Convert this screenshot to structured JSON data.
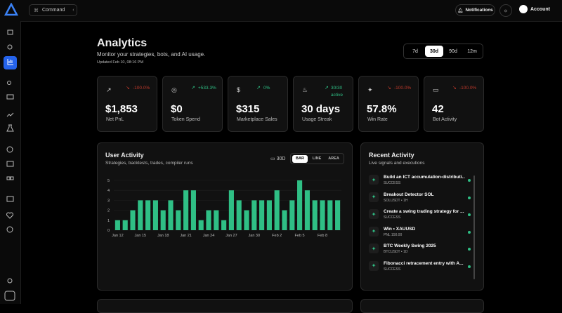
{
  "nav": {
    "command": "Command",
    "notifications": "Notifications",
    "account": "Account"
  },
  "header": {
    "title": "Analytics",
    "subtitle": "Monitor your strategies, bots, and AI usage.",
    "updated": "Updated Feb 10, 08:16 PM",
    "periods": [
      "7d",
      "30d",
      "90d",
      "12m"
    ],
    "active_period_index": 1
  },
  "stats": [
    {
      "value": "$1,853",
      "label": "Net PnL",
      "change": "-100.0%",
      "trend": "down"
    },
    {
      "value": "$0",
      "label": "Token Spend",
      "change": "+533.3%",
      "trend": "up"
    },
    {
      "value": "$315",
      "label": "Marketplace Sales",
      "change": "0%",
      "trend": "up"
    },
    {
      "value": "30 days",
      "label": "Usage Streak",
      "change": "30/30 active",
      "trend": "up"
    },
    {
      "value": "57.8%",
      "label": "Win Rate",
      "change": "-100.0%",
      "trend": "down"
    },
    {
      "value": "42",
      "label": "Bot Activity",
      "change": "-100.0%",
      "trend": "down"
    }
  ],
  "user_activity": {
    "title": "User Activity",
    "subtitle": "Strategies, backtests, trades, compiler runs",
    "range": "30D",
    "modes": [
      "BAR",
      "LINE",
      "AREA"
    ],
    "active_mode_index": 0,
    "chart": {
      "type": "bar",
      "color": "#2fbf85",
      "categories": [
        "Jan 12",
        null,
        null,
        "Jan 15",
        null,
        null,
        "Jan 18",
        null,
        null,
        "Jan 21",
        null,
        null,
        "Jan 24",
        null,
        null,
        "Jan 27",
        null,
        null,
        "Jan 30",
        null,
        null,
        "Feb 2",
        null,
        null,
        "Feb 5",
        null,
        null,
        "Feb 8",
        null,
        null
      ],
      "values": [
        1,
        1,
        2,
        3,
        3,
        3,
        2,
        3,
        2,
        4,
        4,
        1,
        2,
        2,
        1,
        4,
        3,
        2,
        3,
        3,
        3,
        4,
        2,
        3,
        5,
        4,
        3,
        3,
        3,
        3
      ],
      "ylim": [
        0,
        5
      ],
      "yticks": [
        0,
        1,
        2,
        3,
        4,
        5
      ],
      "grid": true
    }
  },
  "recent_activity": {
    "title": "Recent Activity",
    "subtitle": "Live signals and executions",
    "items": [
      {
        "title": "Build an ICT accumulation-distributi...",
        "detail": "SUCCESS"
      },
      {
        "title": "Breakout Detector SOL",
        "detail": "SOLUSDT • 1H"
      },
      {
        "title": "Create a swing trading strategy for ...",
        "detail": "SUCCESS"
      },
      {
        "title": "Win • XAUUSD",
        "detail": "PNL 150.00"
      },
      {
        "title": "BTC Weekly Swing 2025",
        "detail": "BTCUSDT • 1D"
      },
      {
        "title": "Fibonacci retracement entry with A...",
        "detail": "SUCCESS"
      }
    ]
  }
}
